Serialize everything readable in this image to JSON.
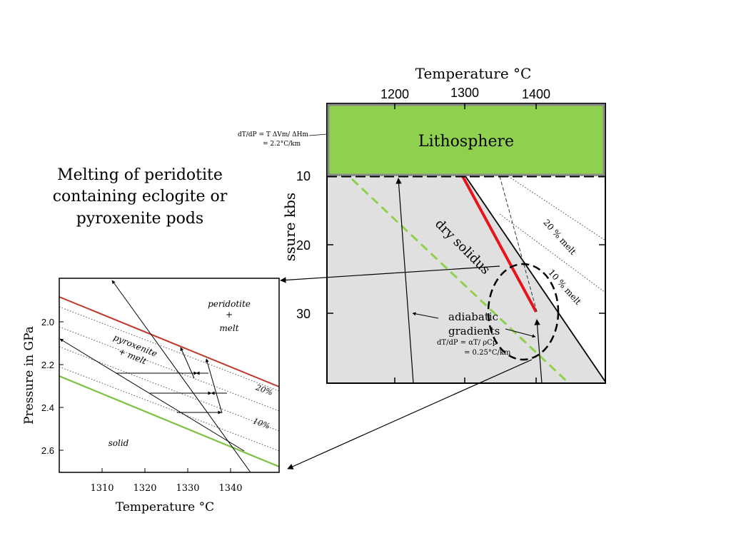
{
  "slide_title": [
    "Melting of peridotite",
    "containing eclogite or",
    "pyroxenite pods"
  ],
  "colors": {
    "lithosphere": "#8fd14f",
    "solid_region": "#e0e0e0",
    "red_line": "#e8141b",
    "green_dashed": "#8fd14f",
    "inset_red": "#c0392b",
    "inset_green": "#7cc242"
  },
  "main_chart": {
    "x_title": "Temperature °C",
    "x_ticks": [
      "1200",
      "1300",
      "1400"
    ],
    "y_title": "ssure kbs",
    "y_ticks": [
      "10",
      "20",
      "30"
    ],
    "lithosphere_label": "Lithosphere",
    "lithosphere_note": [
      "dT/dP = T ΔVm/ ΔHm",
      "= 2.2°C/km"
    ],
    "dry_solidus": "dry solidus",
    "melt_20": "20 % melt",
    "melt_10": "10 % melt",
    "adiabatic": [
      "adiabatic",
      "gradients"
    ],
    "adiabatic_note": [
      "dT/dP  = αT/ ρCp",
      "= 0.25°C/km"
    ]
  },
  "inset_chart": {
    "x_title": "Temperature °C",
    "x_ticks": [
      "1310",
      "1320",
      "1330",
      "1340"
    ],
    "y_title": "Pressure in GPa",
    "y_ticks": [
      "2.0",
      "2.2",
      "2.4",
      "2.6"
    ],
    "label_peridotite": [
      "peridotite",
      "+",
      "melt"
    ],
    "label_pyroxenite": [
      "pyroxenite",
      "+ melt"
    ],
    "label_solid": "solid",
    "label_20": "20%",
    "label_10": "10%"
  }
}
